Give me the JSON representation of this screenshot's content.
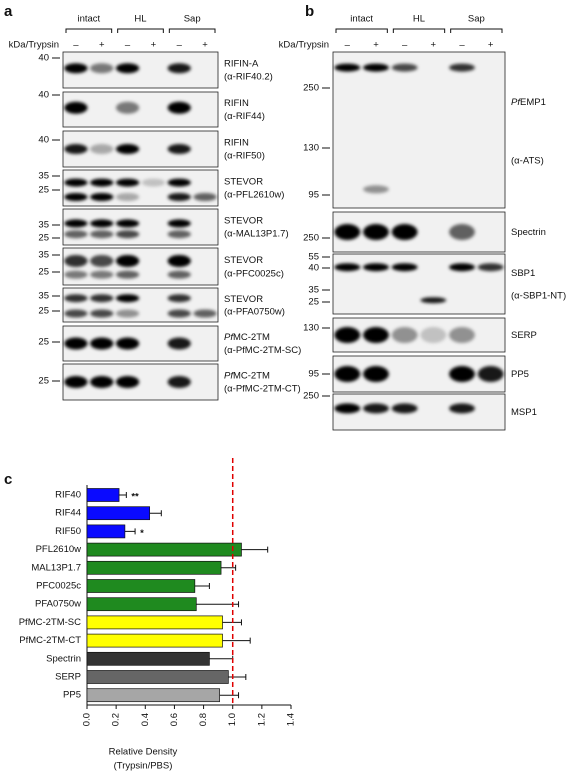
{
  "panel_a": {
    "letter": "a",
    "unit_label": "kDa/Trypsin",
    "groups": [
      "intact",
      "HL",
      "Sap"
    ],
    "lanes": [
      "–",
      "+",
      "–",
      "+",
      "–",
      "+"
    ],
    "blots": [
      {
        "name": "RIFIN-A",
        "antibody": "(α-RIF40.2)",
        "markers": [
          40
        ]
      },
      {
        "name": "RIFIN",
        "antibody": "(α-RIF44)",
        "markers": [
          40
        ]
      },
      {
        "name": "RIFIN",
        "antibody": "(α-RIF50)",
        "markers": [
          40
        ]
      },
      {
        "name": "STEVOR",
        "antibody": "(α-PFL2610w)",
        "markers": [
          35,
          25
        ]
      },
      {
        "name": "STEVOR",
        "antibody": "(α-MAL13P1.7)",
        "markers": [
          35,
          25
        ]
      },
      {
        "name": "STEVOR",
        "antibody": "(α-PFC0025c)",
        "markers": [
          35,
          25
        ]
      },
      {
        "name": "STEVOR",
        "antibody": "(α-PFA0750w)",
        "markers": [
          35,
          25
        ]
      },
      {
        "name_prefix": "Pf",
        "name": "MC-2TM",
        "antibody": "(α-PfMC-2TM-SC)",
        "markers": [
          25
        ]
      },
      {
        "name_prefix": "Pf",
        "name": "MC-2TM",
        "antibody": "(α-PfMC-2TM-CT)",
        "markers": [
          25
        ]
      }
    ]
  },
  "panel_b": {
    "letter": "b",
    "unit_label": "kDa/Trypsin",
    "groups": [
      "intact",
      "HL",
      "Sap"
    ],
    "lanes": [
      "–",
      "+",
      "–",
      "+",
      "–",
      "+"
    ],
    "blots": [
      {
        "name_prefix": "Pf",
        "name": "EMP1",
        "antibody": "(α-ATS)",
        "markers": [
          250,
          130,
          95
        ]
      },
      {
        "name": "Spectrin",
        "markers": [
          250
        ]
      },
      {
        "name": "SBP1",
        "antibody": "(α-SBP1-NT)",
        "markers": [
          55,
          40,
          35,
          25
        ]
      },
      {
        "name": "SERP",
        "markers": [
          130
        ]
      },
      {
        "name": "PP5",
        "markers": [
          95
        ]
      },
      {
        "name": "MSP1",
        "markers": [
          250
        ]
      }
    ]
  },
  "chart_data": {
    "type": "bar",
    "orientation": "horizontal",
    "letter": "c",
    "categories": [
      "RIF40",
      "RIF44",
      "RIF50",
      "PFL2610w",
      "MAL13P1.7",
      "PFC0025c",
      "PFA0750w",
      "PfMC-2TM-SC",
      "PfMC-2TM-CT",
      "Spectrin",
      "SERP",
      "PP5"
    ],
    "values": [
      0.22,
      0.43,
      0.26,
      1.06,
      0.92,
      0.74,
      0.75,
      0.93,
      0.93,
      0.84,
      0.97,
      0.91
    ],
    "errors": [
      0.05,
      0.08,
      0.07,
      0.18,
      0.1,
      0.1,
      0.29,
      0.13,
      0.19,
      0.16,
      0.12,
      0.13
    ],
    "colors": [
      "#0a0aff",
      "#0a0aff",
      "#0a0aff",
      "#1f8a1f",
      "#1f8a1f",
      "#1f8a1f",
      "#1f8a1f",
      "#ffff00",
      "#ffff00",
      "#333333",
      "#666666",
      "#a6a6a6"
    ],
    "significance": [
      "**",
      null,
      "*",
      null,
      null,
      null,
      null,
      null,
      null,
      null,
      null,
      null
    ],
    "reference_line": 1.0,
    "reference_color": "#e00000",
    "xlim": [
      0,
      1.4
    ],
    "xticks": [
      {
        "value": 0,
        "label": "0.0"
      },
      0.2,
      0.4,
      0.6,
      0.8,
      {
        "value": 1,
        "label": "1.0"
      },
      1.2,
      1.4
    ],
    "xlabel": [
      "Relative Density",
      "(Trypsin/PBS)"
    ]
  }
}
